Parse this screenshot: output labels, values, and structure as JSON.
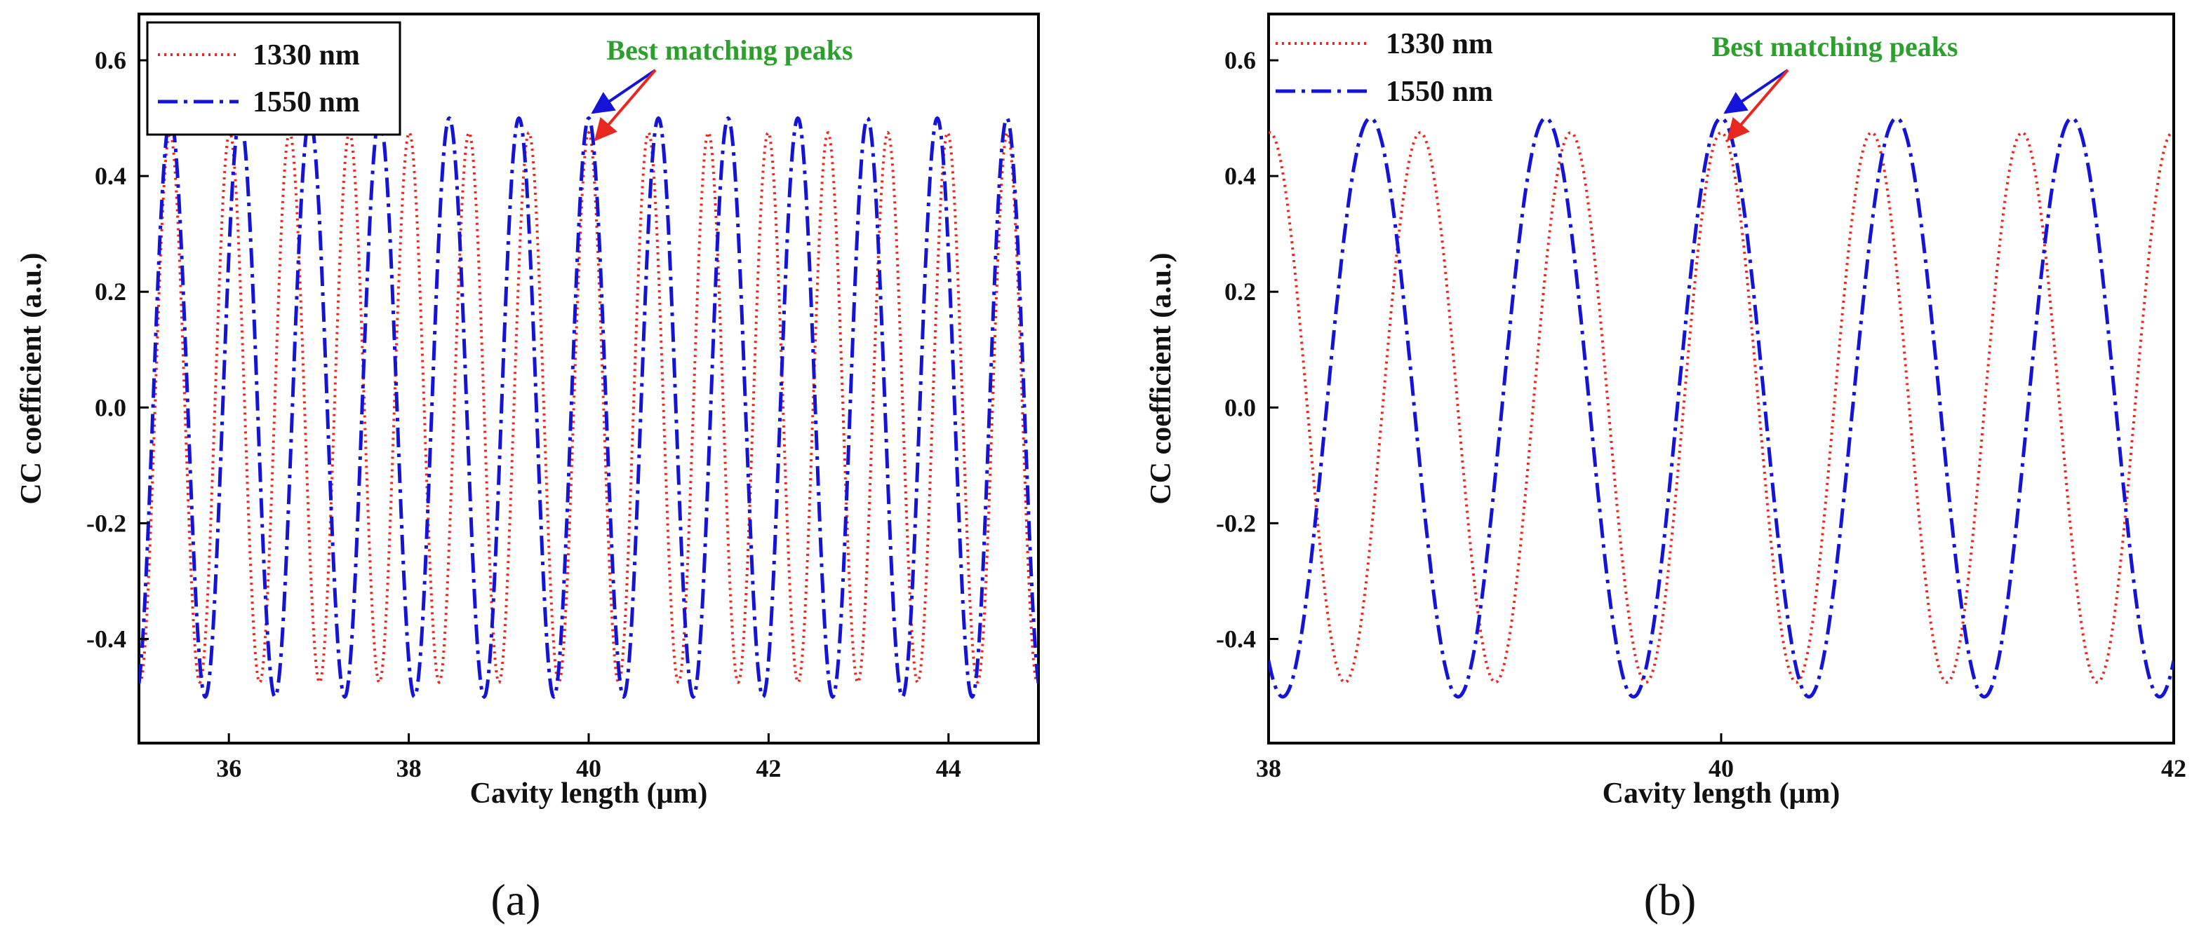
{
  "chart_data": [
    {
      "type": "line",
      "panel_label": "(a)",
      "xlabel": "Cavity length (μm)",
      "ylabel": "CC coefficient (a.u.)",
      "xlim": [
        35,
        45
      ],
      "ylim": [
        -0.58,
        0.68
      ],
      "xticks": [
        36,
        38,
        40,
        42,
        44
      ],
      "xtick_labels": [
        "36",
        "38",
        "40",
        "42",
        "44"
      ],
      "yticks": [
        -0.4,
        -0.2,
        0.0,
        0.2,
        0.4,
        0.6
      ],
      "ytick_labels": [
        "-0.4",
        "-0.2",
        "0.0",
        "0.2",
        "0.4",
        "0.6"
      ],
      "annotation": "Best matching peaks",
      "match_peak_x": 40,
      "series": [
        {
          "name": "1330 nm",
          "color": "#e8271f",
          "style": "dotted",
          "period": 0.665,
          "amplitude": 0.475,
          "peak_x": 40
        },
        {
          "name": "1550 nm",
          "color": "#1414d8",
          "style": "dash-dot",
          "period": 0.775,
          "amplitude": 0.5,
          "peak_x": 40
        }
      ]
    },
    {
      "type": "line",
      "panel_label": "(b)",
      "xlabel": "Cavity length (μm)",
      "ylabel": "CC coefficient (a.u.)",
      "xlim": [
        38,
        42
      ],
      "ylim": [
        -0.58,
        0.68
      ],
      "xticks": [
        38,
        40,
        42
      ],
      "xtick_labels": [
        "38",
        "40",
        "42"
      ],
      "yticks": [
        -0.4,
        -0.2,
        0.0,
        0.2,
        0.4,
        0.6
      ],
      "ytick_labels": [
        "-0.4",
        "-0.2",
        "0.0",
        "0.2",
        "0.4",
        "0.6"
      ],
      "annotation": "Best matching peaks",
      "match_peak_x": 40,
      "series": [
        {
          "name": "1330 nm",
          "color": "#e8271f",
          "style": "dotted",
          "period": 0.665,
          "amplitude": 0.475,
          "peak_x": 40
        },
        {
          "name": "1550 nm",
          "color": "#1414d8",
          "style": "dash-dot",
          "period": 0.775,
          "amplitude": 0.5,
          "peak_x": 40
        }
      ]
    }
  ]
}
